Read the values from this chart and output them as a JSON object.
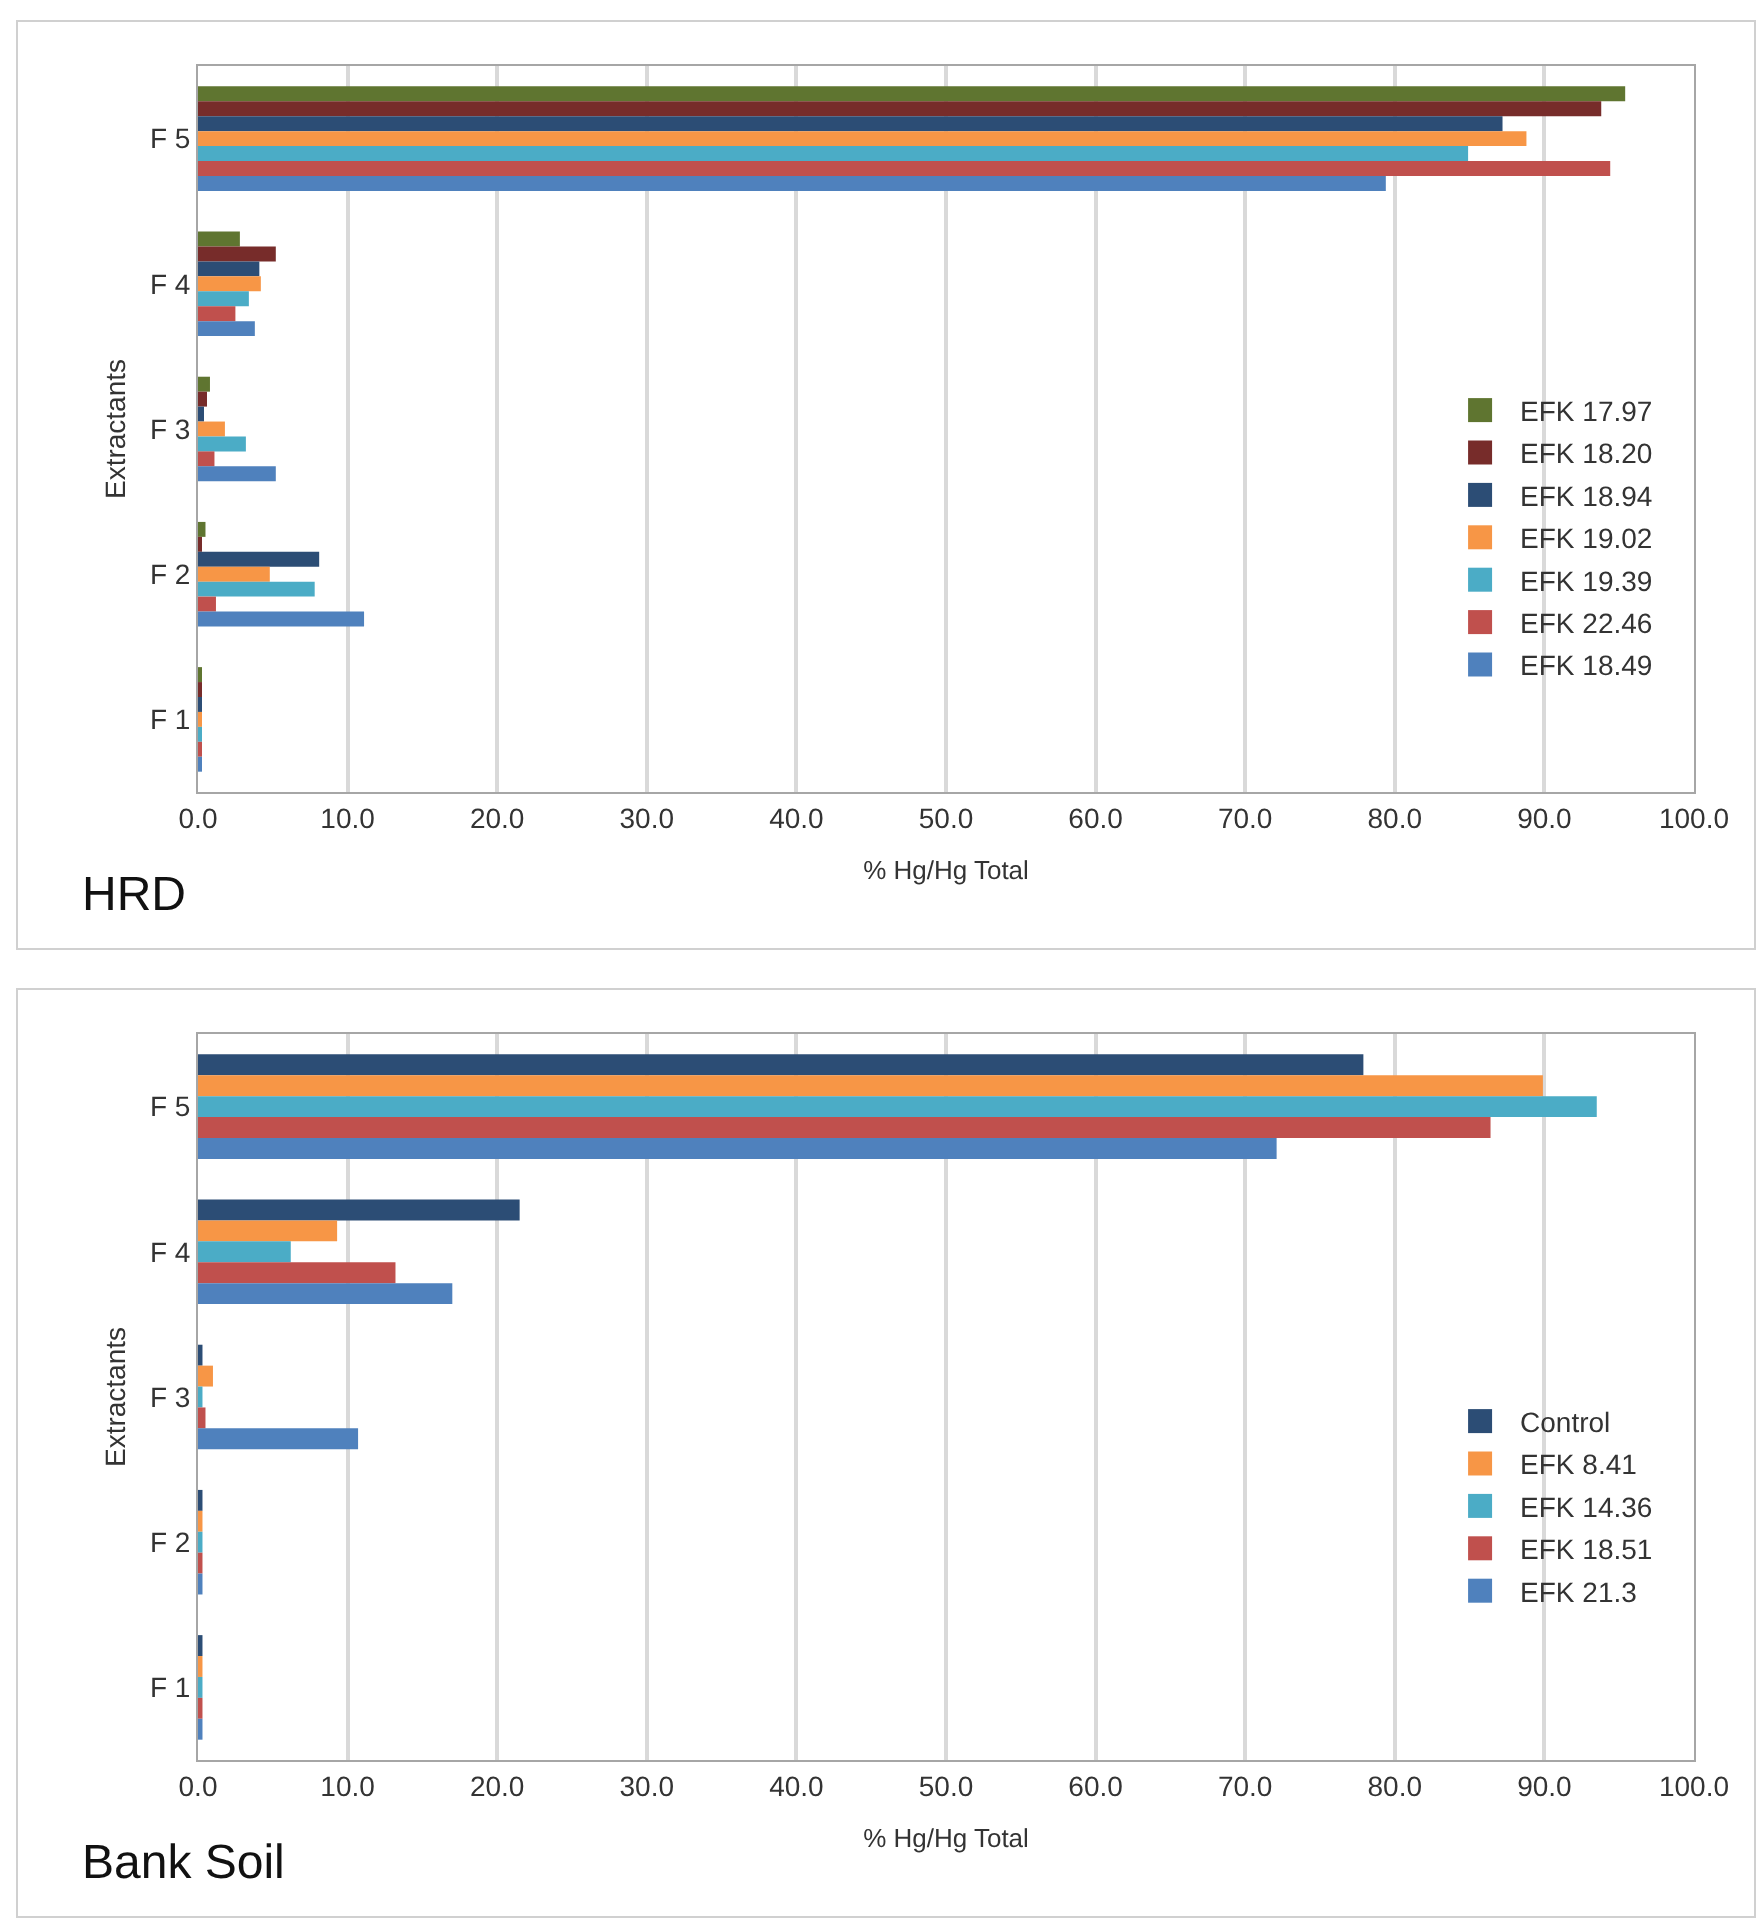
{
  "chart_data": [
    {
      "type": "bar",
      "orientation": "horizontal",
      "categories": [
        "F 5",
        "F 4",
        "F 3",
        "F 2",
        "F 1"
      ],
      "ylabel": "Extractants",
      "xlabel": "% Hg/Hg Total",
      "annotations": [
        "HRD"
      ],
      "xlim": [
        0,
        100
      ],
      "xticks": [
        {
          "value": 0,
          "label": "0.0"
        },
        {
          "value": 10,
          "label": "10.0"
        },
        {
          "value": 20,
          "label": "20.0"
        },
        {
          "value": 30,
          "label": "30.0"
        },
        {
          "value": 40,
          "label": "40.0"
        },
        {
          "value": 50,
          "label": "50.0"
        },
        {
          "value": 60,
          "label": "60.0"
        },
        {
          "value": 70,
          "label": "70.0"
        },
        {
          "value": 80,
          "label": "80.0"
        },
        {
          "value": 90,
          "label": "90.0"
        },
        {
          "value": 100,
          "label": "100.0"
        }
      ],
      "grid": "x",
      "legend": "right",
      "series": [
        {
          "name": "EFK 17.97",
          "color": "#5f7530",
          "values": [
            95.4,
            2.8,
            0.8,
            0.5,
            0.2
          ]
        },
        {
          "name": "EFK 18.20",
          "color": "#772c2a",
          "values": [
            93.8,
            5.2,
            0.6,
            0.2,
            0.2
          ]
        },
        {
          "name": "EFK 18.94",
          "color": "#2c4d75",
          "values": [
            87.2,
            4.1,
            0.4,
            8.1,
            0.2
          ]
        },
        {
          "name": "EFK 19.02",
          "color": "#f79646",
          "values": [
            88.8,
            4.2,
            1.8,
            4.8,
            0.2
          ]
        },
        {
          "name": "EFK 19.39",
          "color": "#4bacc6",
          "values": [
            84.9,
            3.4,
            3.2,
            7.8,
            0.2
          ]
        },
        {
          "name": "EFK 22.46",
          "color": "#c0504d",
          "values": [
            94.4,
            2.5,
            1.1,
            1.2,
            0.2
          ]
        },
        {
          "name": "EFK 18.49",
          "color": "#4f81bd",
          "values": [
            79.4,
            3.8,
            5.2,
            11.1,
            0.2
          ]
        }
      ]
    },
    {
      "type": "bar",
      "orientation": "horizontal",
      "categories": [
        "F 5",
        "F 4",
        "F 3",
        "F 2",
        "F 1"
      ],
      "ylabel": "Extractants",
      "xlabel": "% Hg/Hg Total",
      "annotations": [
        "Bank Soil"
      ],
      "xlim": [
        0,
        100
      ],
      "xticks": [
        {
          "value": 0,
          "label": "0.0"
        },
        {
          "value": 10,
          "label": "10.0"
        },
        {
          "value": 20,
          "label": "20.0"
        },
        {
          "value": 30,
          "label": "30.0"
        },
        {
          "value": 40,
          "label": "40.0"
        },
        {
          "value": 50,
          "label": "50.0"
        },
        {
          "value": 60,
          "label": "60.0"
        },
        {
          "value": 70,
          "label": "70.0"
        },
        {
          "value": 80,
          "label": "80.0"
        },
        {
          "value": 90,
          "label": "90.0"
        },
        {
          "value": 100,
          "label": "100.0"
        }
      ],
      "grid": "x",
      "legend": "right",
      "series": [
        {
          "name": "Control",
          "color": "#2c4d75",
          "values": [
            77.9,
            21.5,
            0.3,
            0.3,
            0.3
          ]
        },
        {
          "name": "EFK 8.41",
          "color": "#f79646",
          "values": [
            89.9,
            9.3,
            1.0,
            0.3,
            0.3
          ]
        },
        {
          "name": "EFK 14.36",
          "color": "#4bacc6",
          "values": [
            93.5,
            6.2,
            0.3,
            0.3,
            0.3
          ]
        },
        {
          "name": "EFK 18.51",
          "color": "#c0504d",
          "values": [
            86.4,
            13.2,
            0.5,
            0.3,
            0.3
          ]
        },
        {
          "name": "EFK 21.3",
          "color": "#4f81bd",
          "values": [
            72.1,
            17.0,
            10.7,
            0.3,
            0.3
          ]
        }
      ]
    }
  ]
}
